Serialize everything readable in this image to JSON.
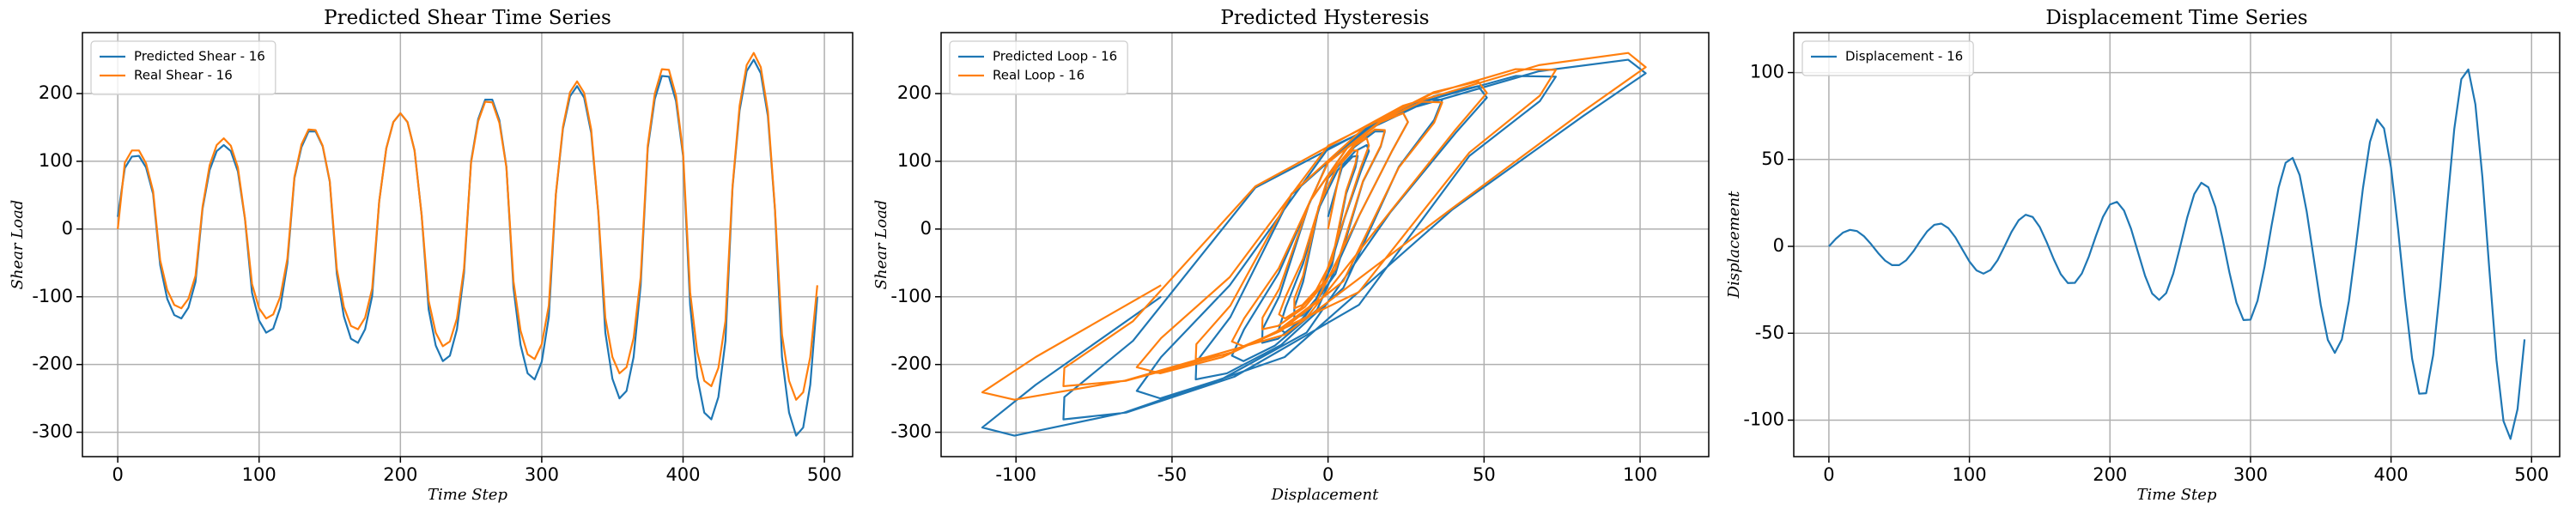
{
  "chart_data": [
    {
      "type": "line",
      "title": "Predicted Shear Time Series",
      "x_label": "Time Step",
      "y_label": "Shear Load",
      "x": [
        0,
        5,
        10,
        15,
        20,
        25,
        30,
        35,
        40,
        45,
        50,
        55,
        60,
        65,
        70,
        75,
        80,
        85,
        90,
        95,
        100,
        105,
        110,
        115,
        120,
        125,
        130,
        135,
        140,
        145,
        150,
        155,
        160,
        165,
        170,
        175,
        180,
        185,
        190,
        195,
        200,
        205,
        210,
        215,
        220,
        225,
        230,
        235,
        240,
        245,
        250,
        255,
        260,
        265,
        270,
        275,
        280,
        285,
        290,
        295,
        300,
        305,
        310,
        315,
        320,
        325,
        330,
        335,
        340,
        345,
        350,
        355,
        360,
        365,
        370,
        375,
        380,
        385,
        390,
        395,
        400,
        405,
        410,
        415,
        420,
        425,
        430,
        435,
        440,
        445,
        450,
        455,
        460,
        465,
        470,
        475,
        480,
        485,
        490,
        495
      ],
      "series": [
        {
          "name": "Predicted Shear - 16",
          "color": "#1f77b4",
          "values": [
            18,
            90,
            107,
            108,
            91,
            52,
            -53,
            -103,
            -127,
            -132,
            -116,
            -78,
            30,
            87,
            115,
            124,
            115,
            85,
            15,
            -94,
            -135,
            -153,
            -147,
            -116,
            -51,
            75,
            121,
            144,
            144,
            122,
            70,
            -66,
            -129,
            -162,
            -168,
            -148,
            -99,
            41,
            119,
            158,
            171,
            158,
            116,
            21,
            -119,
            -172,
            -195,
            -187,
            -148,
            -65,
            100,
            162,
            191,
            191,
            161,
            92,
            -87,
            -171,
            -213,
            -222,
            -196,
            -130,
            51,
            148,
            196,
            211,
            194,
            142,
            25,
            -153,
            -221,
            -250,
            -239,
            -189,
            -83,
            119,
            192,
            226,
            225,
            189,
            108,
            -112,
            -218,
            -271,
            -281,
            -248,
            -165,
            61,
            175,
            233,
            250,
            230,
            167,
            29,
            -189,
            -271,
            -305,
            -293,
            -230,
            -100
          ]
        },
        {
          "name": "Real Shear - 16",
          "color": "#ff7f0e",
          "values": [
            0,
            98,
            116,
            116,
            97,
            56,
            -46,
            -90,
            -112,
            -117,
            -103,
            -69,
            33,
            94,
            124,
            134,
            123,
            91,
            16,
            -81,
            -117,
            -132,
            -126,
            -100,
            -44,
            77,
            125,
            147,
            146,
            123,
            71,
            -59,
            -115,
            -143,
            -148,
            -131,
            -88,
            41,
            119,
            158,
            171,
            158,
            116,
            21,
            -106,
            -153,
            -173,
            -166,
            -132,
            -58,
            98,
            159,
            188,
            187,
            157,
            91,
            -77,
            -150,
            -185,
            -192,
            -170,
            -113,
            52,
            151,
            202,
            218,
            201,
            147,
            26,
            -131,
            -189,
            -213,
            -204,
            -161,
            -71,
            123,
            200,
            236,
            235,
            197,
            113,
            -93,
            -181,
            -224,
            -232,
            -205,
            -136,
            63,
            182,
            242,
            260,
            239,
            174,
            31,
            -156,
            -224,
            -252,
            -241,
            -189,
            -83
          ]
        }
      ],
      "xlim": [
        -25,
        520
      ],
      "ylim": [
        -336,
        290
      ],
      "xticks": [
        0,
        100,
        200,
        300,
        400,
        500
      ],
      "yticks": [
        -300,
        -200,
        -100,
        0,
        100,
        200
      ],
      "grid": true,
      "legend": "upper-left"
    },
    {
      "type": "line",
      "title": "Predicted Hysteresis",
      "x_label": "Displacement",
      "y_label": "Shear Load",
      "x": [
        0,
        4.4,
        7.9,
        9.5,
        8.8,
        5.8,
        1.3,
        -3.8,
        -8.2,
        -10.8,
        -10.8,
        -8,
        -3,
        3.1,
        8.7,
        12.4,
        13.1,
        10.5,
        5.2,
        -1.8,
        -8.7,
        -13.8,
        -15.7,
        -13.6,
        -8,
        0,
        8.4,
        15,
        18.2,
        16.9,
        11.2,
        2.4,
        -7.4,
        -16,
        -21.1,
        -21,
        -15.6,
        -5.8,
        6,
        16.9,
        24.1,
        25.6,
        20.6,
        10.1,
        -3.5,
        -17,
        -27.1,
        -30.8,
        -26.9,
        -15.8,
        0,
        16.7,
        30.1,
        36.6,
        34,
        22.7,
        4.9,
        -15,
        -32.4,
        -42.4,
        -42.2,
        -31.3,
        -11.7,
        12,
        33.8,
        48.1,
        50.9,
        40.9,
        20,
        -6.9,
        -33.8,
        -53.8,
        -61.3,
        -53.5,
        -31.5,
        0,
        33.4,
        60.1,
        73,
        67.9,
        45.3,
        9.9,
        -30,
        -64.7,
        -84.8,
        -84.5,
        -62.5,
        -23.3,
        24,
        67.6,
        96.2,
        101.8,
        81.8,
        39.9,
        -13.9,
        -65.3,
        -100.5,
        -110.8,
        -93.7,
        -53.5
      ],
      "series": [
        {
          "name": "Predicted Loop - 16",
          "color": "#1f77b4",
          "values": [
            18,
            90,
            107,
            108,
            91,
            52,
            -53,
            -103,
            -127,
            -132,
            -116,
            -78,
            30,
            87,
            115,
            124,
            115,
            85,
            15,
            -94,
            -135,
            -153,
            -147,
            -116,
            -51,
            75,
            121,
            144,
            144,
            122,
            70,
            -66,
            -129,
            -162,
            -168,
            -148,
            -99,
            41,
            119,
            158,
            171,
            158,
            116,
            21,
            -119,
            -172,
            -195,
            -187,
            -148,
            -65,
            100,
            162,
            191,
            191,
            161,
            92,
            -87,
            -171,
            -213,
            -222,
            -196,
            -130,
            51,
            148,
            196,
            211,
            194,
            142,
            25,
            -153,
            -221,
            -250,
            -239,
            -189,
            -83,
            119,
            192,
            226,
            225,
            189,
            108,
            -112,
            -218,
            -271,
            -281,
            -248,
            -165,
            61,
            175,
            233,
            250,
            230,
            167,
            29,
            -189,
            -271,
            -305,
            -293,
            -230,
            -100
          ]
        },
        {
          "name": "Real Loop - 16",
          "color": "#ff7f0e",
          "values": [
            0,
            98,
            116,
            116,
            97,
            56,
            -46,
            -90,
            -112,
            -117,
            -103,
            -69,
            33,
            94,
            124,
            134,
            123,
            91,
            16,
            -81,
            -117,
            -132,
            -126,
            -100,
            -44,
            77,
            125,
            147,
            146,
            123,
            71,
            -59,
            -115,
            -143,
            -148,
            -131,
            -88,
            41,
            119,
            158,
            171,
            158,
            116,
            21,
            -106,
            -153,
            -173,
            -166,
            -132,
            -58,
            98,
            159,
            188,
            187,
            157,
            91,
            -77,
            -150,
            -185,
            -192,
            -170,
            -113,
            52,
            151,
            202,
            218,
            201,
            147,
            26,
            -131,
            -189,
            -213,
            -204,
            -161,
            -71,
            123,
            200,
            236,
            235,
            197,
            113,
            -93,
            -181,
            -224,
            -232,
            -205,
            -136,
            63,
            182,
            242,
            260,
            239,
            174,
            31,
            -156,
            -224,
            -252,
            -241,
            -189,
            -83
          ]
        }
      ],
      "xlim": [
        -124,
        122
      ],
      "ylim": [
        -336,
        290
      ],
      "xticks": [
        -100,
        -50,
        0,
        50,
        100
      ],
      "yticks": [
        -300,
        -200,
        -100,
        0,
        100,
        200
      ],
      "grid": true,
      "legend": "upper-left"
    },
    {
      "type": "line",
      "title": "Displacement Time Series",
      "x_label": "Time Step",
      "y_label": "Displacement",
      "x": [
        0,
        5,
        10,
        15,
        20,
        25,
        30,
        35,
        40,
        45,
        50,
        55,
        60,
        65,
        70,
        75,
        80,
        85,
        90,
        95,
        100,
        105,
        110,
        115,
        120,
        125,
        130,
        135,
        140,
        145,
        150,
        155,
        160,
        165,
        170,
        175,
        180,
        185,
        190,
        195,
        200,
        205,
        210,
        215,
        220,
        225,
        230,
        235,
        240,
        245,
        250,
        255,
        260,
        265,
        270,
        275,
        280,
        285,
        290,
        295,
        300,
        305,
        310,
        315,
        320,
        325,
        330,
        335,
        340,
        345,
        350,
        355,
        360,
        365,
        370,
        375,
        380,
        385,
        390,
        395,
        400,
        405,
        410,
        415,
        420,
        425,
        430,
        435,
        440,
        445,
        450,
        455,
        460,
        465,
        470,
        475,
        480,
        485,
        490,
        495
      ],
      "series": [
        {
          "name": "Displacement - 16",
          "color": "#1f77b4",
          "values": [
            0,
            4.4,
            7.9,
            9.5,
            8.8,
            5.8,
            1.3,
            -3.8,
            -8.2,
            -10.8,
            -10.8,
            -8,
            -3,
            3.1,
            8.7,
            12.4,
            13.1,
            10.5,
            5.2,
            -1.8,
            -8.7,
            -13.8,
            -15.7,
            -13.6,
            -8,
            0,
            8.4,
            15,
            18.2,
            16.9,
            11.2,
            2.4,
            -7.4,
            -16,
            -21.1,
            -21,
            -15.6,
            -5.8,
            6,
            16.9,
            24.1,
            25.6,
            20.6,
            10.1,
            -3.5,
            -17,
            -27.1,
            -30.8,
            -26.9,
            -15.8,
            0,
            16.7,
            30.1,
            36.6,
            34,
            22.7,
            4.9,
            -15,
            -32.4,
            -42.4,
            -42.2,
            -31.3,
            -11.7,
            12,
            33.8,
            48.1,
            50.9,
            40.9,
            20,
            -6.9,
            -33.8,
            -53.8,
            -61.3,
            -53.5,
            -31.5,
            0,
            33.4,
            60.1,
            73,
            67.9,
            45.3,
            9.9,
            -30,
            -64.7,
            -84.8,
            -84.5,
            -62.5,
            -23.3,
            24,
            67.6,
            96.2,
            101.8,
            81.8,
            39.9,
            -13.9,
            -65.3,
            -100.5,
            -110.8,
            -93.7,
            -53.5
          ]
        }
      ],
      "xlim": [
        -25,
        520
      ],
      "ylim": [
        -121,
        123
      ],
      "xticks": [
        0,
        100,
        200,
        300,
        400,
        500
      ],
      "yticks": [
        -100,
        -50,
        0,
        50,
        100
      ],
      "grid": true,
      "legend": "upper-left"
    }
  ]
}
